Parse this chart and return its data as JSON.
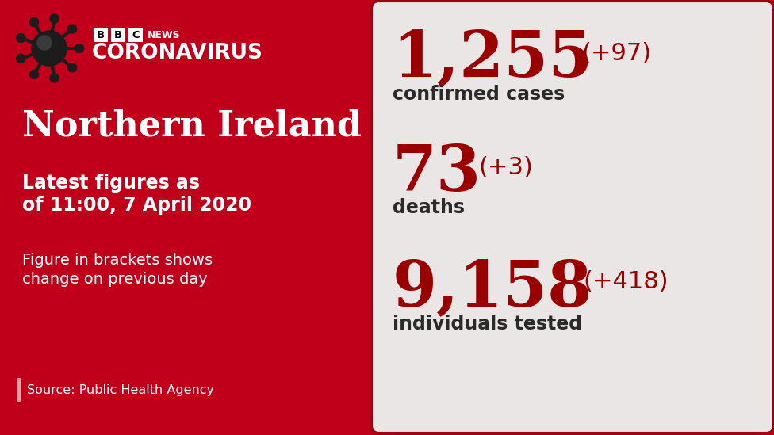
{
  "left_bg_color": "#c0001a",
  "right_panel_color": "#eae6e6",
  "right_panel_border": "#a00010",
  "bbc_news_label": "BBC NEWS",
  "coronavirus_text": "CORONAVIRUS",
  "region_text": "Northern Ireland",
  "date_line1": "Latest figures as",
  "date_line2": "of 11:00, 7 April 2020",
  "bracket_note_line1": "Figure in brackets shows",
  "bracket_note_line2": "change on previous day",
  "source_text": "Source: Public Health Agency",
  "stat1_main": "1,255",
  "stat1_change": "(+97)",
  "stat1_label": "confirmed cases",
  "stat2_main": "73",
  "stat2_change": "(+3)",
  "stat2_label": "deaths",
  "stat3_main": "9,158",
  "stat3_change": "(+418)",
  "stat3_label": "individuals tested",
  "dark_red": "#9b0000",
  "white": "#ffffff",
  "dark_text": "#2a2a2a",
  "source_bar_color": "#e8a0a0"
}
